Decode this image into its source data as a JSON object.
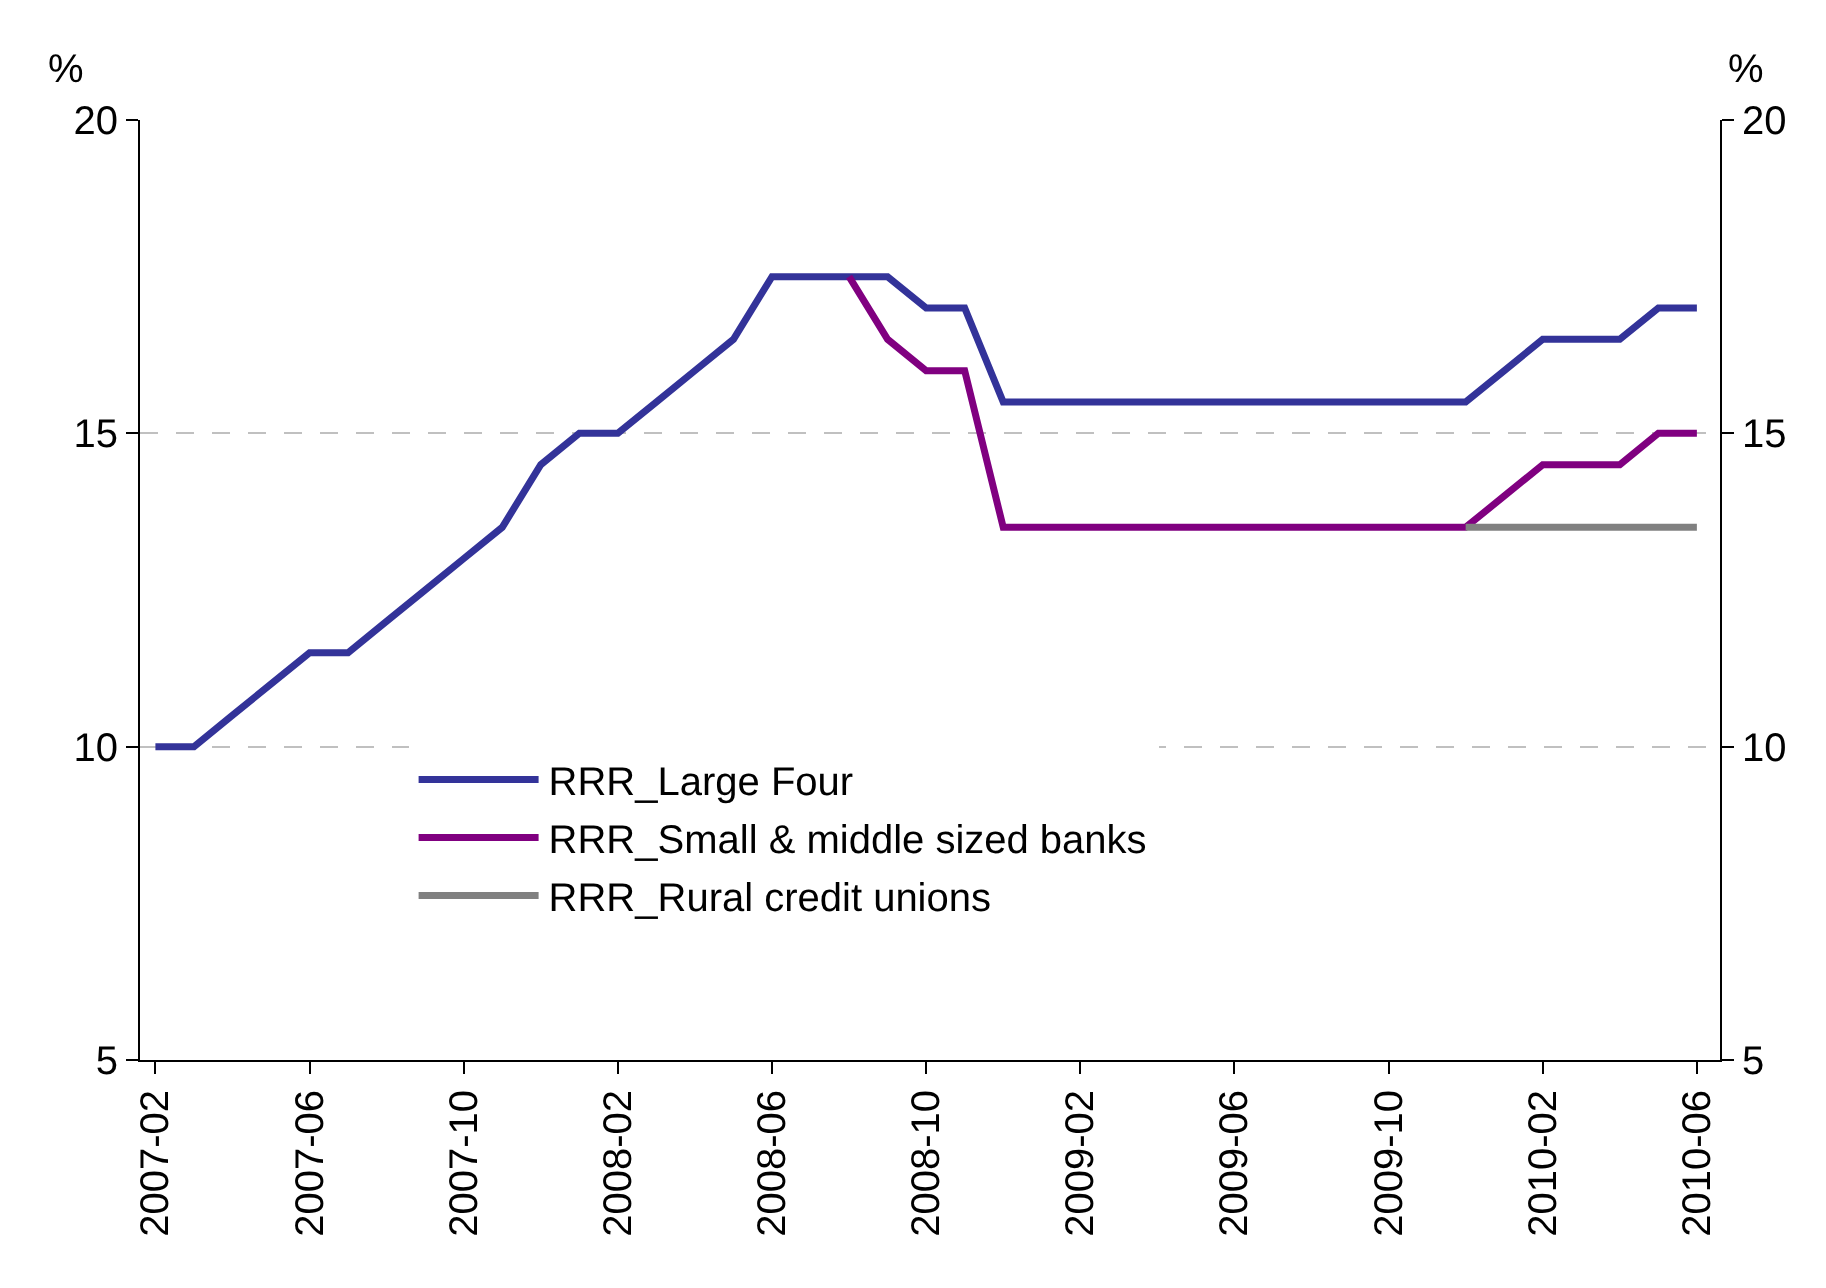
{
  "chart_data": {
    "type": "line",
    "ylabel": "%",
    "y2label": "%",
    "categories": [
      "2007-02",
      null,
      null,
      null,
      "2007-06",
      null,
      null,
      null,
      "2007-10",
      null,
      null,
      null,
      "2008-02",
      null,
      null,
      null,
      "2008-06",
      null,
      null,
      null,
      "2008-10",
      null,
      null,
      null,
      "2009-02",
      null,
      null,
      null,
      "2009-06",
      null,
      null,
      null,
      "2009-10",
      null,
      null,
      null,
      "2010-02",
      null,
      null,
      null,
      "2010-06"
    ],
    "series": [
      {
        "name": "RRR_Large Four",
        "color": "#333399",
        "values": [
          10,
          10,
          10.5,
          11,
          11.5,
          11.5,
          12,
          12.5,
          13,
          13.5,
          14.5,
          15,
          15,
          15.5,
          16,
          16.5,
          17.5,
          17.5,
          17.5,
          17.5,
          17,
          17,
          15.5,
          15.5,
          15.5,
          15.5,
          15.5,
          15.5,
          15.5,
          15.5,
          15.5,
          15.5,
          15.5,
          15.5,
          15.5,
          16,
          16.5,
          16.5,
          16.5,
          17,
          17
        ]
      },
      {
        "name": "RRR_Small & middle sized banks",
        "color": "#800080",
        "values": [
          null,
          null,
          null,
          null,
          null,
          null,
          null,
          null,
          null,
          null,
          null,
          null,
          null,
          null,
          null,
          null,
          null,
          null,
          17.5,
          16.5,
          16,
          16,
          13.5,
          13.5,
          13.5,
          13.5,
          13.5,
          13.5,
          13.5,
          13.5,
          13.5,
          13.5,
          13.5,
          13.5,
          13.5,
          14,
          14.5,
          14.5,
          14.5,
          15,
          15
        ]
      },
      {
        "name": "RRR_Rural credit unions",
        "color": "#808080",
        "values": [
          null,
          null,
          null,
          null,
          null,
          null,
          null,
          null,
          null,
          null,
          null,
          null,
          null,
          null,
          null,
          null,
          null,
          null,
          null,
          null,
          null,
          null,
          null,
          null,
          null,
          null,
          null,
          null,
          null,
          null,
          null,
          null,
          null,
          null,
          13.5,
          13.5,
          13.5,
          13.5,
          13.5,
          13.5,
          13.5
        ]
      }
    ],
    "ylim": [
      5,
      20
    ],
    "yticks": [
      5,
      10,
      15,
      20
    ],
    "y2lim": [
      5,
      20
    ],
    "y2ticks": [
      5,
      10,
      15,
      20
    ],
    "grid": "y",
    "legend": "bottom",
    "marker": "none",
    "line_style": "solid"
  }
}
